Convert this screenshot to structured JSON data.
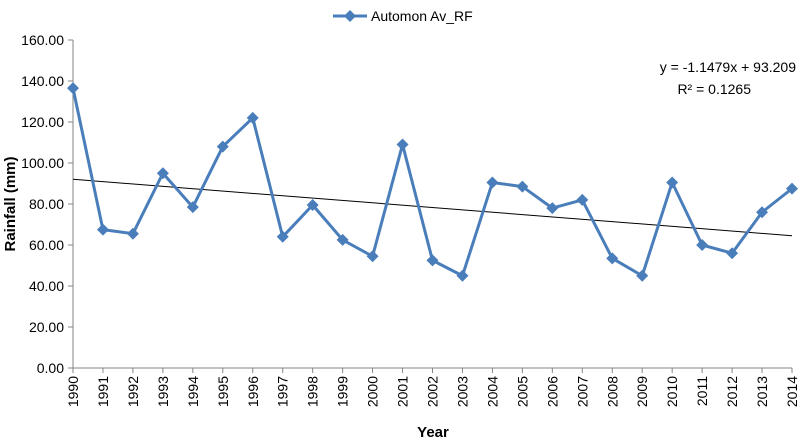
{
  "chart_data": {
    "type": "line",
    "title": "",
    "xlabel": "Year",
    "ylabel": "Rainfall (mm)",
    "ylim": [
      0,
      160
    ],
    "ytick_labels": [
      "0.00",
      "20.00",
      "40.00",
      "60.00",
      "80.00",
      "100.00",
      "120.00",
      "140.00",
      "160.00"
    ],
    "categories": [
      "1990",
      "1991",
      "1992",
      "1993",
      "1994",
      "1995",
      "1996",
      "1997",
      "1998",
      "1999",
      "2000",
      "2001",
      "2002",
      "2003",
      "2004",
      "2005",
      "2006",
      "2007",
      "2008",
      "2009",
      "2010",
      "2011",
      "2012",
      "2013",
      "2014"
    ],
    "series": [
      {
        "name": "Automon Av_RF",
        "color": "#4a7ebb",
        "marker": "diamond",
        "values": [
          136.5,
          67.5,
          65.5,
          95,
          78.5,
          108,
          122,
          64,
          79.5,
          62.5,
          54.5,
          109,
          52.5,
          45,
          90.5,
          88.5,
          78,
          82,
          53.5,
          45,
          90.5,
          60,
          56,
          76,
          87.5
        ]
      }
    ],
    "trendline": {
      "type": "linear",
      "color": "#000000",
      "equation": "y = -1.1479x + 93.209",
      "r_squared": "R² = 0.1265",
      "slope": -1.1479,
      "intercept": 93.209
    },
    "legend": {
      "position": "top",
      "label": "Automon Av_RF"
    },
    "grid": false
  }
}
